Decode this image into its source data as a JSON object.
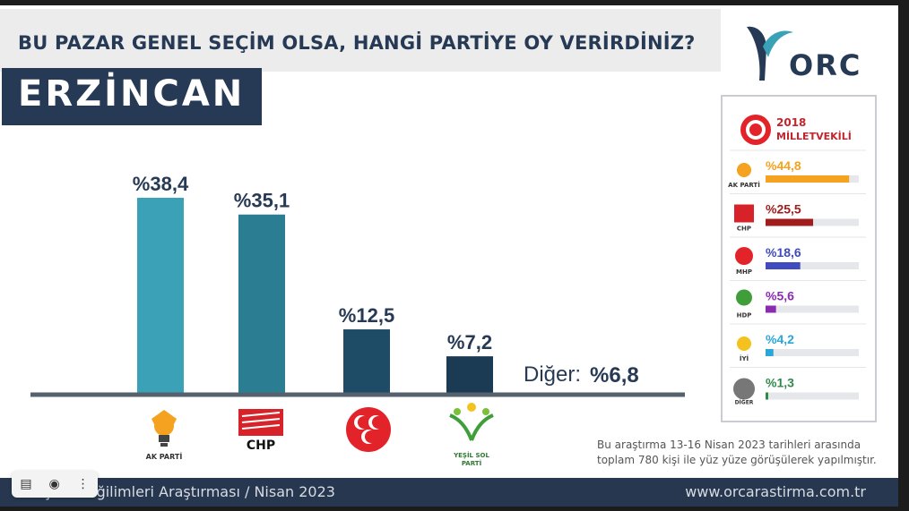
{
  "headline": "BU PAZAR GENEL SEÇİM OLSA, HANGİ PARTİYE OY VERİRDİNİZ?",
  "city": "ERZİNCAN",
  "brand": "ORC",
  "chart_data": [
    {
      "type": "bar",
      "categories": [
        "AK PARTİ",
        "CHP",
        "MHP",
        "YEŞİL SOL PARTİ"
      ],
      "values": [
        38.4,
        35.1,
        12.5,
        7.2
      ],
      "data_labels": [
        "%38,4",
        "%35,1",
        "%12,5",
        "%7,2"
      ],
      "other": {
        "label": "Diğer:",
        "value": 6.8,
        "value_label": "%6,8"
      },
      "colors": [
        "#3aa1b6",
        "#2b7d92",
        "#1e4b66",
        "#1b3b55"
      ]
    },
    {
      "type": "bar",
      "title": "2018",
      "subtitle": "MİLLETVEKİLİ",
      "categories": [
        "AK PARTİ",
        "CHP",
        "MHP",
        "HDP",
        "İYİ",
        "DİĞER"
      ],
      "values": [
        44.8,
        25.5,
        18.6,
        5.6,
        4.2,
        1.3
      ],
      "data_labels": [
        "%44,8",
        "%25,5",
        "%18,6",
        "%5,6",
        "%4,2",
        "%1,3"
      ],
      "colors": [
        "#f4a21f",
        "#a11d1d",
        "#3f4bbf",
        "#8b2bb0",
        "#2aa6d8",
        "#2f8a4a"
      ]
    }
  ],
  "party_logos": {
    "akp": {
      "label": "AK PARTİ",
      "icon": "lightbulb-icon"
    },
    "chp": {
      "label": "CHP",
      "icon": "six-arrows-icon"
    },
    "mhp": {
      "label": "MHP",
      "icon": "three-crescents-icon"
    },
    "ysp": {
      "label": "YEŞİL SOL",
      "label2": "PARTİ",
      "icon": "tree-people-icon"
    },
    "hdp": {
      "label": "HDP",
      "icon": "tree-icon"
    },
    "iyi": {
      "label": "İYİ",
      "icon": "iyi-sun-icon"
    },
    "diger": {
      "label": "DİĞER",
      "icon": "circle-badge-icon"
    }
  },
  "note": {
    "line1": "Bu araştırma 13-16 Nisan 2023 tarihleri arasında",
    "line2": "toplam 780 kişi ile yüz yüze görüşülerek yapılmıştır."
  },
  "footer": {
    "left": "Seçmen Eğilimleri Araştırması / Nisan 2023",
    "right": "www.orcarastirma.com.tr"
  },
  "toolbar": {
    "bookmark_icon": "bookmark-icon",
    "lens_icon": "lens-icon",
    "more_icon": "more-icon"
  }
}
